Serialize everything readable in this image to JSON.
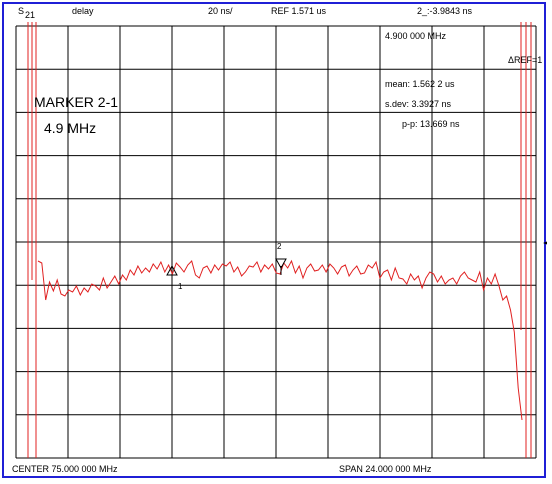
{
  "header": {
    "param_main": "S",
    "param_sub": "21",
    "format": "delay",
    "scale": "20 ns/",
    "reference": "REF 1.571 us",
    "marker_readout": "2_:-3.9843 ns"
  },
  "marker_panel": {
    "frequency": "4.900 000 MHz",
    "ref_label": "ΔREF=1"
  },
  "statistics": {
    "mean": "mean: 1.562 2 us",
    "sdev": "s.dev: 3.3927 ns",
    "pp": "p-p: 13.669 ns"
  },
  "marker_note": {
    "title": "MARKER 2-1",
    "value": "4.9 MHz"
  },
  "markers": {
    "m1_label": "1",
    "m2_label": "2"
  },
  "footer": {
    "center": "CENTER  75.000 000 MHz",
    "span": "SPAN  24.000 000 MHz"
  },
  "colors": {
    "trace": "#e02020",
    "grid": "#000000",
    "frame": "#1f1fd6"
  },
  "trace_values": [
    9,
    7,
    -30,
    -12,
    -21,
    -10,
    -24,
    -26,
    -20,
    -22,
    -16,
    -25,
    -18,
    -22,
    -14,
    -16,
    -20,
    -8,
    -18,
    -12,
    -6,
    -14,
    -5,
    -10,
    0,
    -5,
    4,
    -3,
    2,
    -2,
    6,
    1,
    8,
    -2,
    5,
    -4,
    7,
    3,
    -2,
    5,
    9,
    -5,
    -8,
    2,
    4,
    -3,
    5,
    0,
    6,
    4,
    8,
    -2,
    3,
    -6,
    -2,
    4,
    3,
    8,
    -2,
    5,
    1,
    6,
    -3,
    -4,
    7,
    2,
    9,
    -3,
    4,
    -8,
    2,
    6,
    -1,
    0,
    5,
    -2,
    6,
    2,
    -4,
    3,
    5,
    -6,
    0,
    4,
    -4,
    -3,
    5,
    2,
    8,
    -8,
    -2,
    0,
    -10,
    2,
    -8,
    -9,
    -14,
    -4,
    -10,
    -6,
    -18,
    -8,
    -2,
    -4,
    -12,
    -6,
    -14,
    -10,
    -8,
    -14,
    -6,
    -2,
    -8,
    -10,
    -12,
    -2,
    -20,
    -8,
    -14,
    -4,
    -16,
    -30,
    -26,
    -40,
    -62,
    -118,
    -150
  ]
}
